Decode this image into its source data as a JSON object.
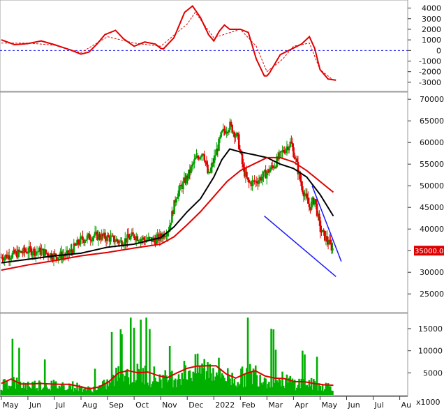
{
  "chart_data": [
    {
      "type": "line",
      "panel": "oscillator",
      "y_ticks": [
        "4000",
        "3000",
        "2000",
        "1000",
        "0",
        "-1000",
        "-2000",
        "-3000"
      ],
      "ylim": [
        -3600,
        4500
      ],
      "zero_line": 0,
      "series": [
        {
          "style": "solid-red",
          "x": [
            0,
            0.5,
            1,
            1.5,
            2,
            2.3,
            2.6,
            3,
            3.3,
            3.6,
            3.9,
            4.3,
            4.6,
            5,
            5.4,
            5.8,
            6,
            6.1,
            6.5,
            6.9,
            7.2,
            7.5,
            7.8,
            8,
            8.2,
            8.4,
            8.6,
            9,
            9.3,
            9.6,
            9.9,
            10,
            10.1,
            10.5,
            10.9,
            11.3,
            11.6,
            11.8,
            12,
            12.3,
            12.6
          ],
          "y": [
            1000,
            550,
            650,
            900,
            550,
            300,
            50,
            -350,
            -150,
            600,
            1500,
            1900,
            1100,
            400,
            800,
            600,
            200,
            150,
            1200,
            3600,
            4200,
            3100,
            1500,
            900,
            1800,
            2400,
            2000,
            2000,
            1700,
            -800,
            -2400,
            -2400,
            -2100,
            -400,
            100,
            600,
            1300,
            200,
            -1800,
            -2700,
            -2800
          ]
        },
        {
          "style": "dashed-red",
          "x": [
            0,
            1,
            2,
            3,
            4,
            5,
            6,
            7,
            7.3,
            8,
            9,
            9.6,
            10,
            10.6,
            11,
            11.6,
            12,
            12.5
          ],
          "y": [
            700,
            700,
            500,
            -200,
            1300,
            700,
            400,
            2500,
            3600,
            1200,
            2000,
            400,
            -2000,
            -800,
            400,
            700,
            -1800,
            -2800
          ]
        }
      ]
    },
    {
      "type": "candlestick",
      "panel": "price",
      "y_ticks": [
        "70000",
        "65000",
        "60000",
        "55000",
        "50000",
        "45000",
        "40000",
        "35000",
        "30000",
        "25000"
      ],
      "ylim": [
        21000,
        71000
      ],
      "last_price_label": "35000.00",
      "close_series": [
        [
          0,
          33500
        ],
        [
          0.5,
          34200
        ],
        [
          1,
          35000
        ],
        [
          1.5,
          34800
        ],
        [
          2,
          33800
        ],
        [
          2.5,
          34000
        ],
        [
          3,
          37500
        ],
        [
          3.5,
          38500
        ],
        [
          4,
          38000
        ],
        [
          4.5,
          37000
        ],
        [
          5,
          38500
        ],
        [
          5.4,
          37500
        ],
        [
          5.8,
          37500
        ],
        [
          6,
          38200
        ],
        [
          6.3,
          40000
        ],
        [
          6.6,
          48000
        ],
        [
          7,
          52000
        ],
        [
          7.3,
          56000
        ],
        [
          7.6,
          58000
        ],
        [
          7.8,
          52000
        ],
        [
          8,
          56000
        ],
        [
          8.3,
          62000
        ],
        [
          8.6,
          64000
        ],
        [
          8.9,
          61000
        ],
        [
          9.1,
          54000
        ],
        [
          9.3,
          50500
        ],
        [
          9.6,
          51000
        ],
        [
          10,
          53000
        ],
        [
          10.3,
          55000
        ],
        [
          10.6,
          58000
        ],
        [
          10.9,
          60000
        ],
        [
          11.1,
          55500
        ],
        [
          11.3,
          50000
        ],
        [
          11.6,
          45000
        ],
        [
          11.8,
          47000
        ],
        [
          12,
          40000
        ],
        [
          12.3,
          37000
        ],
        [
          12.5,
          35200
        ]
      ],
      "series": [
        {
          "name": "",
          "style": "ma-black",
          "x": [
            0,
            1,
            2,
            3,
            4,
            5,
            6,
            6.5,
            7,
            7.5,
            8,
            8.3,
            8.6,
            9,
            9.5,
            10,
            10.5,
            11,
            11.5,
            12,
            12.5
          ],
          "y": [
            32200,
            33000,
            33800,
            34400,
            35800,
            36500,
            38000,
            40500,
            44000,
            47000,
            52000,
            56000,
            58500,
            57800,
            57200,
            56500,
            55000,
            54000,
            52000,
            48000,
            43000
          ]
        },
        {
          "name": "",
          "style": "ma-red",
          "x": [
            0,
            1,
            2,
            3,
            4,
            5,
            6,
            6.5,
            7,
            7.5,
            8,
            8.5,
            9,
            9.5,
            10,
            10.5,
            11,
            11.5,
            12,
            12.5
          ],
          "y": [
            30500,
            31700,
            32700,
            33800,
            34600,
            35600,
            36500,
            38200,
            41000,
            44000,
            47500,
            51000,
            53500,
            55000,
            56500,
            56500,
            55500,
            53500,
            51000,
            48500
          ]
        }
      ],
      "trendlines": [
        {
          "color": "#1a1aff",
          "from": [
            9.9,
            43000
          ],
          "to": [
            12.6,
            29000
          ]
        },
        {
          "color": "#1a1aff",
          "from": [
            11.7,
            50000
          ],
          "to": [
            12.8,
            32500
          ]
        }
      ]
    },
    {
      "type": "bar",
      "panel": "volume",
      "y_ticks": [
        "15000",
        "10000",
        "5000"
      ],
      "unit_label": "x1000",
      "ylim": [
        0,
        18000
      ],
      "values_avg": [
        2600,
        3600,
        2500,
        2500,
        2600,
        2500,
        2400,
        2400,
        1900,
        1400,
        1800,
        3000,
        5000,
        5500,
        5000,
        5200,
        4400,
        3900,
        5000,
        6000,
        6500,
        6600,
        6600,
        4800,
        3800,
        4800,
        5500,
        4300,
        3800,
        3700,
        3000,
        3000,
        2600,
        2300,
        2200
      ],
      "series": [
        {
          "name": "",
          "style": "volume-ma-red",
          "values_ref": "values_avg"
        }
      ]
    }
  ],
  "x_axis": {
    "labels": [
      "May",
      "Jun",
      "Jul",
      "Aug",
      "Sep",
      "Oct",
      "Nov",
      "Dec",
      "2022",
      "Feb",
      "Mar",
      "Apr",
      "May",
      "Jun",
      "Jul",
      "Au"
    ],
    "values": [
      0,
      1,
      2,
      3,
      4,
      5,
      6,
      7,
      8,
      9,
      10,
      11,
      12,
      13,
      14,
      15
    ]
  },
  "colors": {
    "red": "#e00000",
    "black": "#000000",
    "green": "#00a000",
    "blue": "#1a1aff",
    "zero_line": "#1a1aff",
    "volume_bar": "#00b000",
    "badge": "#e00000"
  }
}
